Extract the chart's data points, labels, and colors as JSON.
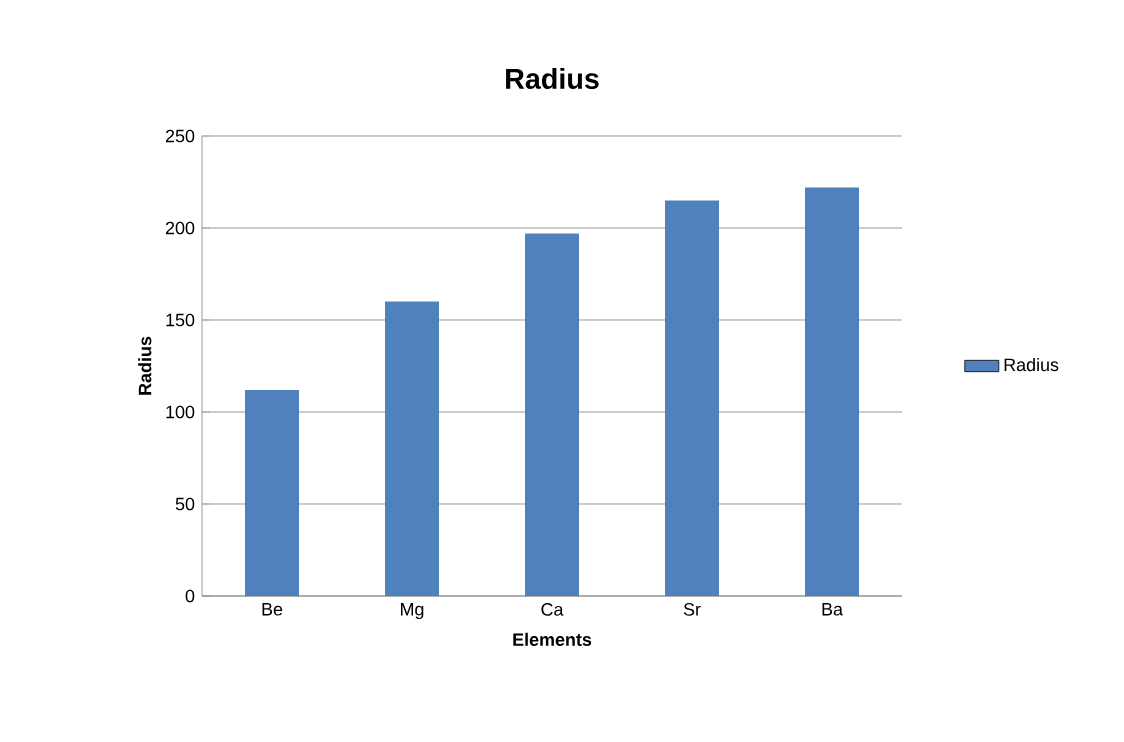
{
  "chart_data": {
    "type": "bar",
    "title": "Radius",
    "xlabel": "Elements",
    "ylabel": "Radius",
    "categories": [
      "Be",
      "Mg",
      "Ca",
      "Sr",
      "Ba"
    ],
    "series": [
      {
        "name": "Radius",
        "color": "#4f81bd",
        "values": [
          112,
          160,
          197,
          215,
          222
        ]
      }
    ],
    "ylim": [
      0,
      250
    ],
    "yticks": [
      0,
      50,
      100,
      150,
      200,
      250
    ],
    "grid": "y",
    "legend": "right"
  }
}
